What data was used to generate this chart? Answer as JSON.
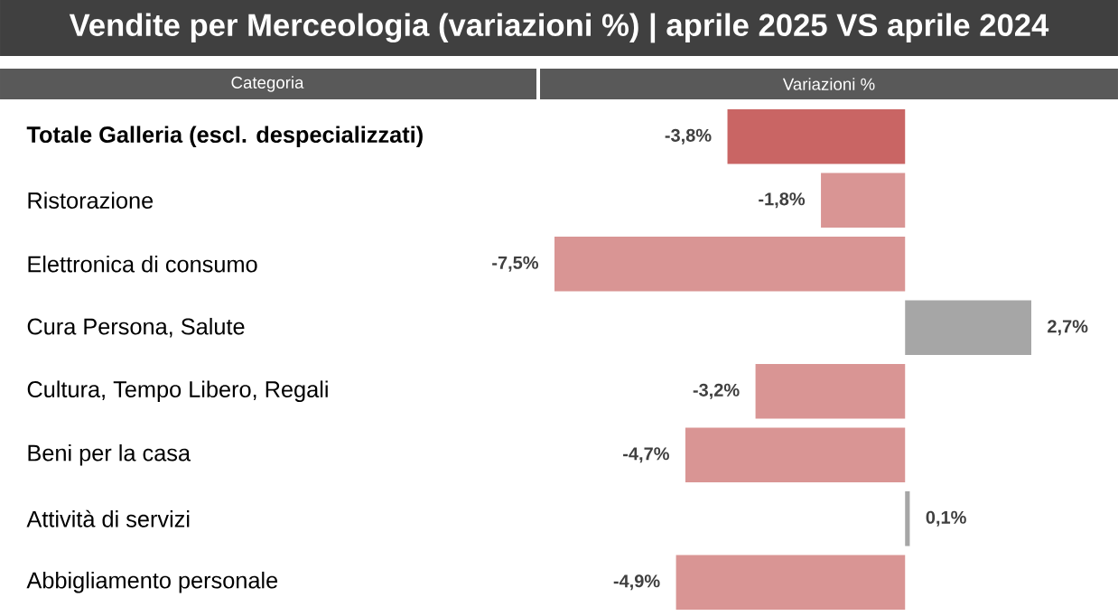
{
  "chart_data": {
    "type": "bar",
    "orientation": "horizontal",
    "title": "Vendite per Merceologia (variazioni %) | aprile 2025 VS aprile 2024",
    "ylabel": "Categoria",
    "xlabel": "Variazioni %",
    "categories": [
      "Totale Galleria (escl. despecializzati)",
      "Ristorazione",
      "Elettronica di consumo",
      "Cura Persona, Salute",
      "Cultura, Tempo Libero, Regali",
      "Beni per la casa",
      "Attività di servizi",
      "Abbigliamento personale"
    ],
    "values": [
      -3.8,
      -1.8,
      -7.5,
      2.7,
      -3.2,
      -4.7,
      0.1,
      -4.9
    ],
    "value_labels": [
      "-3,8%",
      "-1,8%",
      "-7,5%",
      "2,7%",
      "-3,2%",
      "-4,7%",
      "0,1%",
      "-4,9%"
    ],
    "colors": [
      "#c96564",
      "#d99594",
      "#d99594",
      "#a6a6a6",
      "#d99594",
      "#d99594",
      "#a6a6a6",
      "#d99594"
    ]
  }
}
